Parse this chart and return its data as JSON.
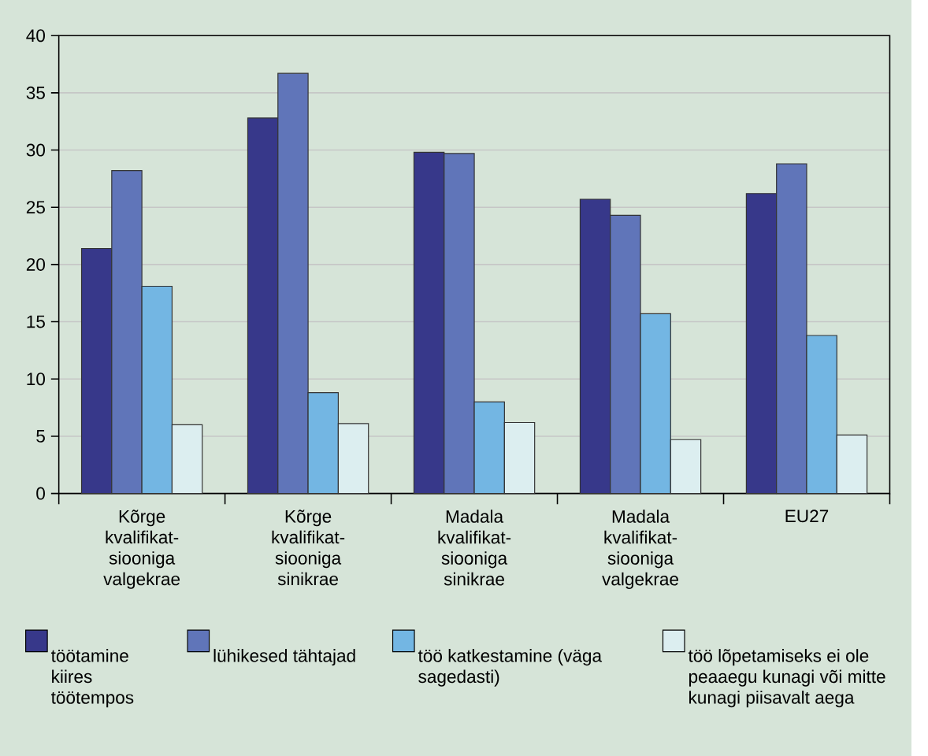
{
  "chart_data": {
    "type": "bar",
    "categories": [
      "Kõrge kvalifikat-siooniga valgekrae",
      "Kõrge kvalifikat-siooniga sinikrae",
      "Madala kvalifikat-siooniga sinikrae",
      "Madala kvalifikat-siooniga valgekrae",
      "EU27"
    ],
    "series": [
      {
        "name": "töötamine kiires töötempos",
        "color": "#37388a",
        "values": [
          21.4,
          32.8,
          29.8,
          25.7,
          26.2
        ]
      },
      {
        "name": "lühikesed tähtajad",
        "color": "#6075b9",
        "values": [
          28.2,
          36.7,
          29.7,
          24.3,
          28.8
        ]
      },
      {
        "name": "töö katkestamine (väga sagedasti)",
        "color": "#73b6e3",
        "values": [
          18.1,
          8.8,
          8.0,
          15.7,
          13.8
        ]
      },
      {
        "name": "töö lõpetamiseks ei ole peaaegu kunagi või mitte kunagi piisavalt aega",
        "color": "#dceef0",
        "values": [
          6.0,
          6.1,
          6.2,
          4.7,
          5.1
        ]
      }
    ],
    "ylim": [
      0,
      40
    ],
    "yticks": [
      0,
      5,
      10,
      15,
      20,
      25,
      30,
      35,
      40
    ],
    "grid": "y",
    "legend": "bottom"
  }
}
